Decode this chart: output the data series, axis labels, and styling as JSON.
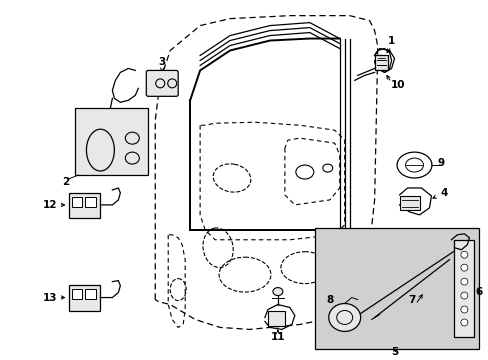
{
  "bg_color": "#ffffff",
  "line_color": "#000000",
  "fill_color": "#e8e8e8",
  "shade_color": "#d0d0d0",
  "figsize": [
    4.89,
    3.6
  ],
  "dpi": 100
}
